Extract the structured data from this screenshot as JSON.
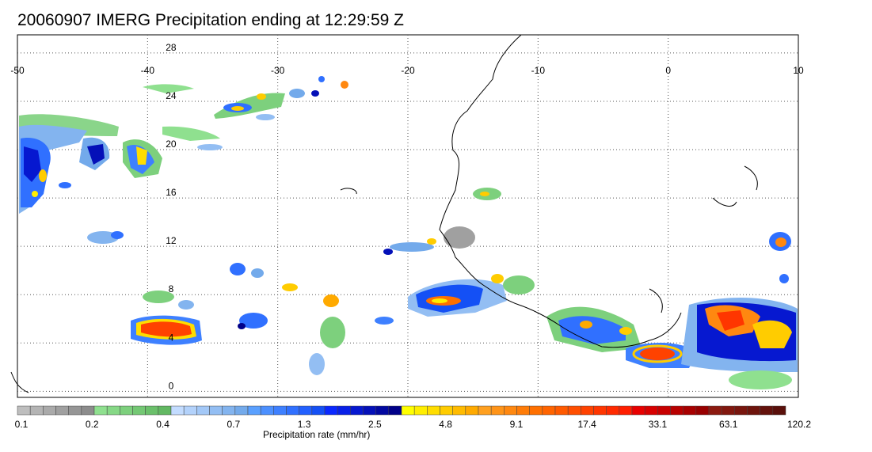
{
  "title": "20060907 IMERG Precipitation ending at 12:29:59 Z",
  "map": {
    "lon_ticks": [
      -50,
      -40,
      -30,
      -20,
      -10,
      0,
      10
    ],
    "lat_ticks": [
      28,
      24,
      20,
      16,
      12,
      8,
      4,
      0
    ],
    "lon_range": [
      -50,
      10
    ],
    "lat_range": [
      -0.5,
      29.5
    ],
    "gridlines": "dotted",
    "land_color": "#ffffff",
    "coastline_color": "#000000"
  },
  "colorbar": {
    "title": "Precipitation rate (mm/hr)",
    "labels": [
      "0.1",
      "0.2",
      "0.4",
      "0.7",
      "1.3",
      "2.5",
      "4.8",
      "9.1",
      "17.4",
      "33.1",
      "63.1",
      "120.2"
    ],
    "colors": [
      "#bebebe",
      "#b4b4b4",
      "#aaaaaa",
      "#a0a0a0",
      "#969696",
      "#8c8c8c",
      "#8fe08f",
      "#86d886",
      "#7dd07d",
      "#74c874",
      "#6bc06b",
      "#62b862",
      "#c3dcff",
      "#b3d2fb",
      "#a3c8f7",
      "#93bef3",
      "#83b4ef",
      "#73aaeb",
      "#5aa0ff",
      "#4c90ff",
      "#3e80ff",
      "#3070ff",
      "#2260ff",
      "#1450f5",
      "#0a28ff",
      "#0820e8",
      "#0618d0",
      "#0410b8",
      "#0208a0",
      "#000088",
      "#ffff00",
      "#ffee00",
      "#ffdd00",
      "#ffcc00",
      "#ffbb00",
      "#ffaa00",
      "#ffa020",
      "#ff9418",
      "#ff8810",
      "#ff7c08",
      "#ff7000",
      "#ff6400",
      "#ff5a00",
      "#ff4e00",
      "#ff4200",
      "#ff3600",
      "#ff2a00",
      "#ff1e00",
      "#e80000",
      "#d80000",
      "#c80000",
      "#b80000",
      "#a80000",
      "#980000",
      "#8c1a10",
      "#82180f",
      "#78160e",
      "#6e140d",
      "#64120c",
      "#5a100b"
    ]
  }
}
